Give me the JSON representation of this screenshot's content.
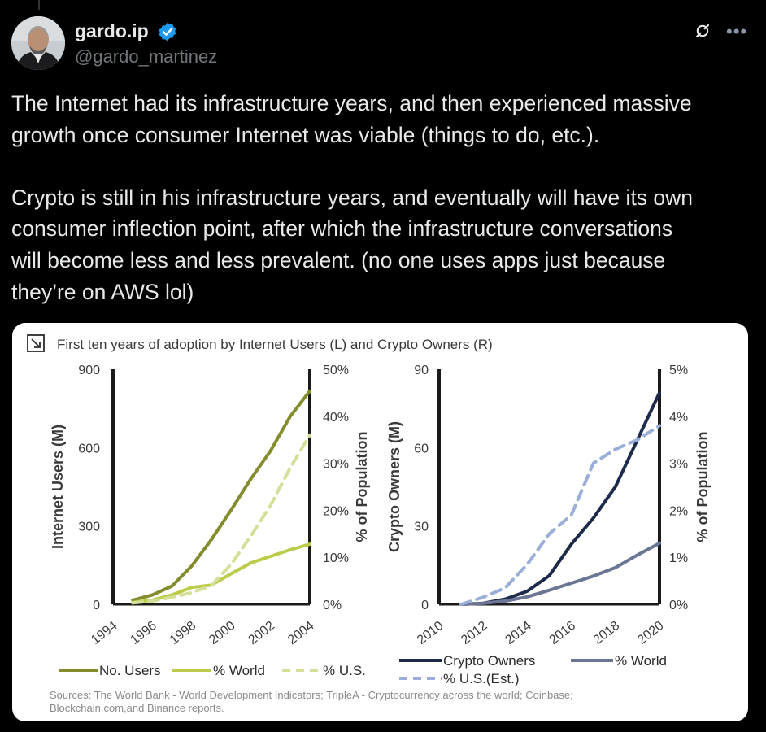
{
  "author": {
    "display_name": "gardo.ip",
    "handle": "@gardo_martinez",
    "verified": true,
    "avatar": "avatar-photo"
  },
  "actions": {
    "grok_icon": "grok-icon",
    "more_icon": "more-icon",
    "more_glyph": "•••"
  },
  "tweet": {
    "line1": "The Internet had its infrastructure years, and then experienced massive",
    "line2": "growth once consumer Internet was viable (things to do, etc.).",
    "line3": "Crypto is still in his infrastructure years, and eventually will have its own",
    "line4": "consumer inflection point, after which the infrastructure conversations",
    "line5": "will become less and less prevalent. (no one uses apps just because",
    "line6": "they’re on AWS lol)"
  },
  "colors": {
    "olive_dark": "#858c2e",
    "olive_light": "#bccc4a",
    "olive_dash": "#d6df97",
    "navy": "#1e2a4a",
    "slate": "#6b7594",
    "blue_dash": "#9aaed8"
  },
  "media": {
    "title": "First ten years of adoption by Internet Users (L) and Crypto Owners (R)",
    "sources_line1": "Sources: The World Bank - World Development Indicators; TripleA - Cryptocurrency across the world; Coinbase;",
    "sources_line2": "Blockchain.com,and Binance reports."
  },
  "chart_data": [
    {
      "type": "line",
      "title": "Internet Users",
      "xlabel": "",
      "ylabel": "Internet Users (M)",
      "y2label": "% of Population",
      "x": [
        1994,
        1995,
        1996,
        1997,
        1998,
        1999,
        2000,
        2001,
        2002,
        2003,
        2004
      ],
      "xticks": [
        "1994",
        "1996",
        "1998",
        "2000",
        "2002",
        "2004"
      ],
      "yticks": [
        "0",
        "300",
        "600",
        "900"
      ],
      "y2ticks": [
        "0%",
        "10%",
        "20%",
        "30%",
        "40%",
        "50%"
      ],
      "ylim": [
        0,
        900
      ],
      "y2lim": [
        0,
        50
      ],
      "series": [
        {
          "name": "No. Users",
          "axis": "left",
          "style": "solid",
          "color": "#858c2e",
          "x": [
            1995,
            1996,
            1997,
            1998,
            1999,
            2000,
            2001,
            2002,
            2003,
            2004
          ],
          "values": [
            16,
            36,
            70,
            147,
            248,
            361,
            480,
            587,
            719,
            817
          ]
        },
        {
          "name": "% World",
          "axis": "right",
          "style": "solid",
          "color": "#bccc4a",
          "x": [
            1995,
            1996,
            1997,
            1998,
            1999,
            2000,
            2001,
            2002,
            2003,
            2004
          ],
          "values": [
            0.4,
            0.9,
            2.0,
            3.6,
            4.1,
            6.5,
            8.8,
            10.2,
            11.6,
            12.8
          ]
        },
        {
          "name": "% U.S.",
          "axis": "right",
          "style": "dashed",
          "color": "#d6df97",
          "x": [
            1995,
            1996,
            1997,
            1998,
            1999,
            2000,
            2001,
            2002,
            2003,
            2004
          ],
          "values": [
            0.3,
            0.7,
            1.5,
            2.5,
            4.0,
            8.5,
            14.5,
            21.0,
            29.0,
            36.0
          ]
        }
      ],
      "legend": [
        "No. Users",
        "% World",
        "% U.S."
      ]
    },
    {
      "type": "line",
      "title": "Crypto Owners",
      "xlabel": "",
      "ylabel": "Crypto Owners (M)",
      "y2label": "% of Population",
      "x": [
        2010,
        2011,
        2012,
        2013,
        2014,
        2015,
        2016,
        2017,
        2018,
        2019,
        2020
      ],
      "xticks": [
        "2010",
        "2012",
        "2014",
        "2016",
        "2018",
        "2020"
      ],
      "yticks": [
        "0",
        "30",
        "60",
        "90"
      ],
      "y2ticks": [
        "0%",
        "1%",
        "2%",
        "3%",
        "4%",
        "5%"
      ],
      "ylim": [
        0,
        90
      ],
      "y2lim": [
        0,
        5
      ],
      "series": [
        {
          "name": "Crypto Owners",
          "axis": "left",
          "style": "solid",
          "color": "#1e2a4a",
          "x": [
            2011,
            2012,
            2013,
            2014,
            2015,
            2016,
            2017,
            2018,
            2019,
            2020
          ],
          "values": [
            0,
            0.4,
            2.0,
            5.0,
            11.0,
            23.0,
            33.0,
            45.0,
            63.0,
            81.0
          ]
        },
        {
          "name": "% World",
          "axis": "right",
          "style": "solid",
          "color": "#6b7594",
          "x": [
            2011,
            2012,
            2013,
            2014,
            2015,
            2016,
            2017,
            2018,
            2019,
            2020
          ],
          "values": [
            0,
            0.02,
            0.07,
            0.16,
            0.3,
            0.45,
            0.6,
            0.78,
            1.05,
            1.3
          ]
        },
        {
          "name": "% U.S.(Est.)",
          "axis": "right",
          "style": "dashed",
          "color": "#9aaed8",
          "x": [
            2011,
            2012,
            2013,
            2014,
            2015,
            2016,
            2017,
            2018,
            2019,
            2020
          ],
          "values": [
            0,
            0.15,
            0.35,
            0.85,
            1.5,
            1.9,
            3.0,
            3.3,
            3.5,
            3.8
          ]
        }
      ],
      "legend": [
        "Crypto Owners",
        "% World",
        "% U.S.(Est.)"
      ]
    }
  ]
}
